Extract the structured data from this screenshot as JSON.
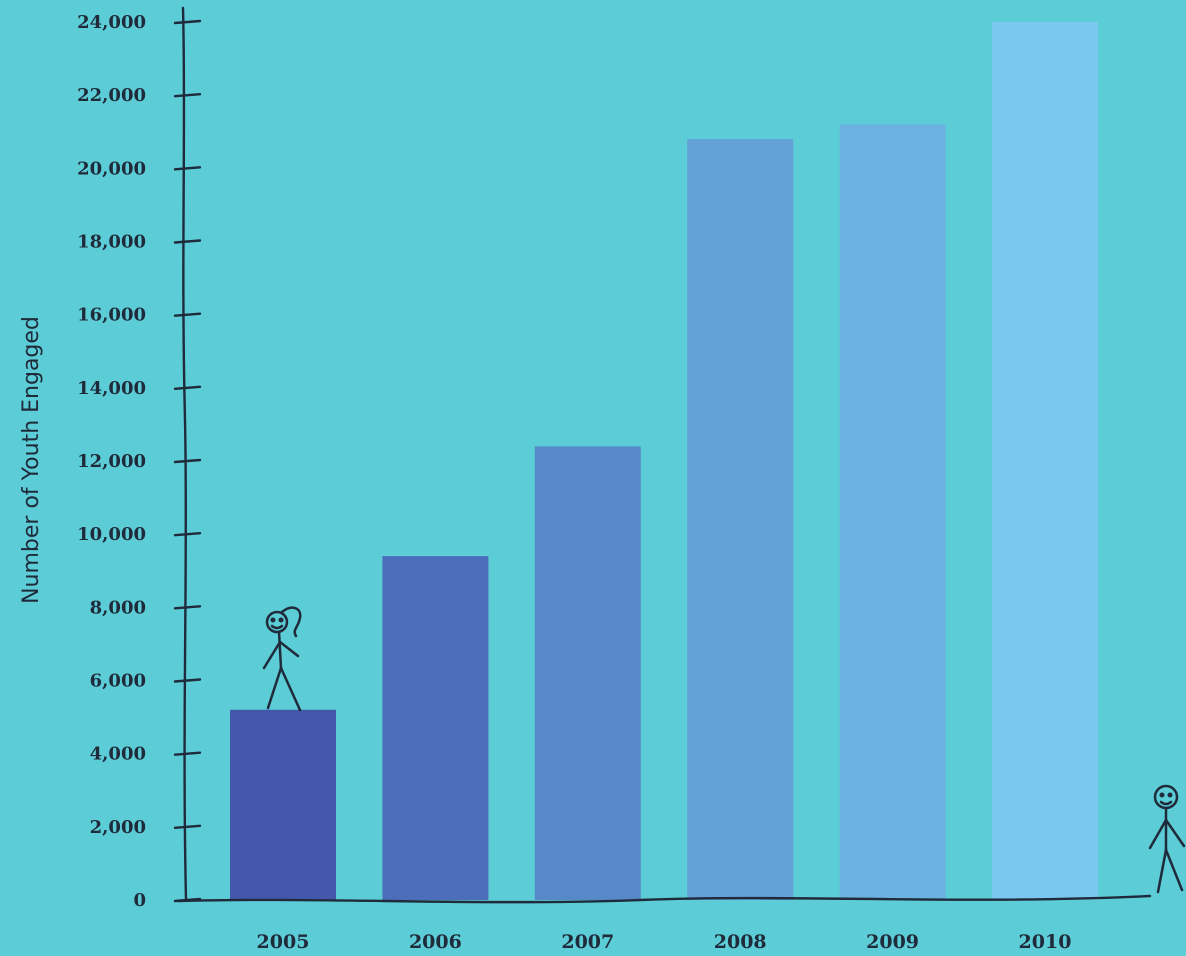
{
  "chart_data": {
    "type": "bar",
    "title": "",
    "xlabel": "",
    "ylabel": "Number of Youth Engaged",
    "categories": [
      "2005",
      "2006",
      "2007",
      "2008",
      "2009",
      "2010"
    ],
    "values": [
      5200,
      9400,
      12400,
      20800,
      21200,
      24000
    ],
    "yticks": [
      0,
      2000,
      4000,
      6000,
      8000,
      10000,
      12000,
      14000,
      16000,
      18000,
      20000,
      22000,
      24000
    ],
    "ytick_labels": [
      "0",
      "2,000",
      "4,000",
      "6,000",
      "8,000",
      "10,000",
      "12,000",
      "14,000",
      "16,000",
      "18,000",
      "20,000",
      "22,000",
      "24,000"
    ],
    "ylim": [
      0,
      24000
    ],
    "grid": false,
    "legend": "none",
    "bar_colors": [
      "#4358ab",
      "#4c6dba",
      "#5789c8",
      "#63a1d6",
      "#6bb2e0",
      "#7ac7ef"
    ],
    "background": "#5ccdd6"
  }
}
